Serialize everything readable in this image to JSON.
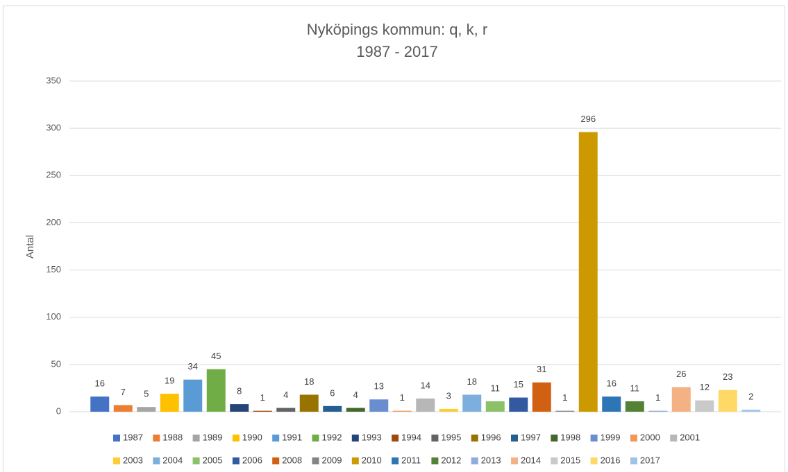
{
  "chart_data": {
    "type": "bar",
    "title": "Nyköpings kommun: q, k, r",
    "subtitle": "1987 - 2017",
    "y_label": "Antal",
    "ylim": [
      0,
      350
    ],
    "yticks": [
      0,
      50,
      100,
      150,
      200,
      250,
      300,
      350
    ],
    "grid": true,
    "legend": "bottom",
    "series": [
      {
        "name": "1987",
        "color": "#4472c4",
        "values": [
          16
        ]
      },
      {
        "name": "1988",
        "color": "#ed7d31",
        "values": [
          7
        ]
      },
      {
        "name": "1989",
        "color": "#a5a5a5",
        "values": [
          5
        ]
      },
      {
        "name": "1990",
        "color": "#ffc000",
        "values": [
          19
        ]
      },
      {
        "name": "1991",
        "color": "#5b9bd5",
        "values": [
          34
        ]
      },
      {
        "name": "1992",
        "color": "#70ad47",
        "values": [
          45
        ]
      },
      {
        "name": "1993",
        "color": "#264478",
        "values": [
          8
        ]
      },
      {
        "name": "1994",
        "color": "#9e480e",
        "values": [
          1
        ]
      },
      {
        "name": "1995",
        "color": "#636363",
        "values": [
          4
        ]
      },
      {
        "name": "1996",
        "color": "#997300",
        "values": [
          18
        ]
      },
      {
        "name": "1997",
        "color": "#255e91",
        "values": [
          6
        ]
      },
      {
        "name": "1998",
        "color": "#43682b",
        "values": [
          4
        ]
      },
      {
        "name": "1999",
        "color": "#698ed0",
        "values": [
          13
        ]
      },
      {
        "name": "2000",
        "color": "#f1975a",
        "values": [
          1
        ]
      },
      {
        "name": "2001",
        "color": "#b7b7b7",
        "values": [
          14
        ]
      },
      {
        "name": "2003",
        "color": "#ffcd33",
        "values": [
          3
        ]
      },
      {
        "name": "2004",
        "color": "#7cafdd",
        "values": [
          18
        ]
      },
      {
        "name": "2005",
        "color": "#8cc168",
        "values": [
          11
        ]
      },
      {
        "name": "2006",
        "color": "#335aa1",
        "values": [
          15
        ]
      },
      {
        "name": "2008",
        "color": "#d26012",
        "values": [
          31
        ]
      },
      {
        "name": "2009",
        "color": "#848484",
        "values": [
          1
        ]
      },
      {
        "name": "2010",
        "color": "#cc9a00",
        "values": [
          296
        ]
      },
      {
        "name": "2011",
        "color": "#2e75b6",
        "values": [
          16
        ]
      },
      {
        "name": "2012",
        "color": "#548235",
        "values": [
          11
        ]
      },
      {
        "name": "2013",
        "color": "#8faadc",
        "values": [
          1
        ]
      },
      {
        "name": "2014",
        "color": "#f4b183",
        "values": [
          26
        ]
      },
      {
        "name": "2015",
        "color": "#c9c9c9",
        "values": [
          12
        ]
      },
      {
        "name": "2016",
        "color": "#ffd966",
        "values": [
          23
        ]
      },
      {
        "name": "2017",
        "color": "#9dc3e6",
        "values": [
          2
        ]
      }
    ]
  }
}
